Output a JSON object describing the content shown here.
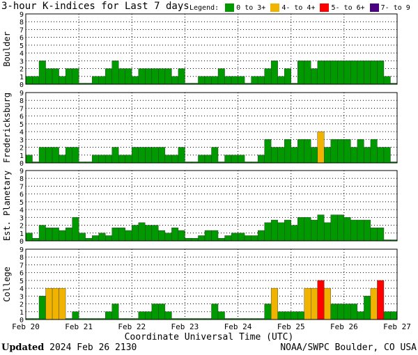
{
  "header": {
    "title": "3-hour K-indices for Last 7 days"
  },
  "legend": {
    "label": "Legend:",
    "items": [
      {
        "label": "0 to 3+",
        "color": "#009900"
      },
      {
        "label": "4- to 4+",
        "color": "#f0b400"
      },
      {
        "label": "5- to 6+",
        "color": "#ff0000"
      },
      {
        "label": "7- to 9",
        "color": "#4b0082"
      }
    ]
  },
  "footer": {
    "updated_label": "Updated",
    "updated_value": "2024 Feb 26 2130",
    "source": "NOAA/SWPC Boulder, CO USA"
  },
  "chart_data": {
    "type": "bar",
    "title": "3-hour K-indices for Last 7 days",
    "xlabel": "Coordinate Universal Time (UTC)",
    "x_ticks": [
      "Feb 20",
      "Feb 21",
      "Feb 22",
      "Feb 23",
      "Feb 24",
      "Feb 25",
      "Feb 26",
      "Feb 27"
    ],
    "ylim": [
      0,
      9
    ],
    "y_ticks": [
      "0",
      "1",
      "2",
      "3",
      "4",
      "5",
      "6",
      "7",
      "8",
      "9"
    ],
    "grid": "dotted",
    "bins_per_day": 8,
    "color_scale": [
      {
        "range": "0 to 3+",
        "min": 0,
        "max": 3.99,
        "color": "#009900"
      },
      {
        "range": "4- to 4+",
        "min": 4,
        "max": 4.99,
        "color": "#f0b400"
      },
      {
        "range": "5- to 6+",
        "min": 5,
        "max": 6.99,
        "color": "#ff0000"
      },
      {
        "range": "7- to 9",
        "min": 7,
        "max": 9,
        "color": "#4b0082"
      }
    ],
    "series": [
      {
        "name": "Boulder",
        "values": [
          1,
          1,
          3,
          2,
          2,
          1,
          2,
          2,
          0,
          0,
          1,
          1,
          2,
          3,
          2,
          2,
          1,
          2,
          2,
          2,
          2,
          2,
          1,
          2,
          0,
          0,
          1,
          1,
          1,
          2,
          1,
          1,
          1,
          0,
          1,
          1,
          2,
          3,
          1,
          2,
          0,
          3,
          3,
          2,
          3,
          3,
          3,
          3,
          3,
          3,
          3,
          3,
          3,
          3,
          1,
          0
        ]
      },
      {
        "name": "Fredericksburg",
        "values": [
          1,
          0,
          2,
          2,
          2,
          1,
          2,
          2,
          0,
          0,
          1,
          1,
          1,
          2,
          1,
          1,
          2,
          2,
          2,
          2,
          2,
          1,
          1,
          2,
          0,
          0,
          1,
          1,
          2,
          0,
          1,
          1,
          1,
          0,
          0,
          1,
          3,
          2,
          2,
          3,
          2,
          3,
          3,
          2,
          4,
          2,
          3,
          3,
          3,
          2,
          3,
          2,
          3,
          2,
          2,
          0
        ]
      },
      {
        "name": "Est. Planetary",
        "values": [
          1,
          0.33,
          2,
          1.67,
          1.67,
          1.33,
          1.67,
          3,
          1,
          0.33,
          0.67,
          1,
          0.67,
          1.67,
          1.67,
          1.33,
          2,
          2.33,
          2,
          2,
          1.33,
          1,
          1.67,
          1.33,
          0.33,
          0.33,
          0.67,
          1.33,
          1.33,
          0.33,
          0.67,
          1,
          1,
          0.67,
          0.67,
          1.33,
          2.33,
          2.67,
          2.33,
          2.67,
          2,
          3,
          3,
          2.67,
          3.33,
          2.33,
          3.33,
          3.33,
          3,
          2.67,
          2.67,
          2.67,
          1.67,
          1.67,
          0,
          0
        ]
      },
      {
        "name": "College",
        "values": [
          0,
          0,
          3,
          4,
          4,
          4,
          0,
          1,
          0,
          0,
          0,
          0,
          1,
          2,
          0,
          0,
          0,
          1,
          1,
          2,
          2,
          1,
          0,
          0,
          0,
          0,
          0,
          0,
          2,
          1,
          0,
          0,
          0,
          0,
          0,
          0,
          2,
          4,
          1,
          1,
          1,
          1,
          4,
          4,
          5,
          4,
          2,
          2,
          2,
          2,
          1,
          3,
          4,
          5,
          1,
          1
        ]
      }
    ]
  }
}
